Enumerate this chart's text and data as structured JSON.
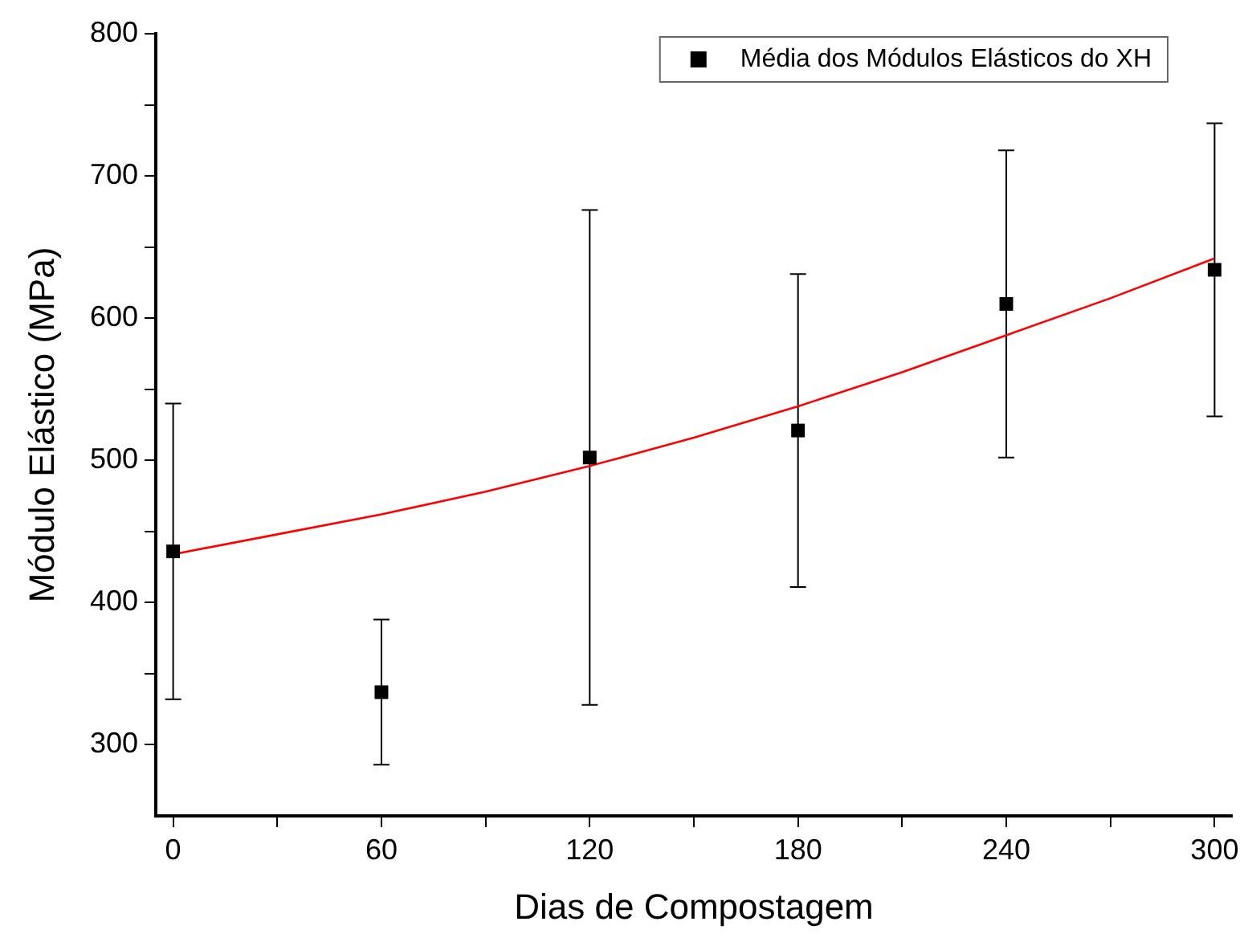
{
  "chart_data": {
    "type": "scatter",
    "xlabel": "Dias de Compostagem",
    "ylabel": "Módulo Elástico (MPa)",
    "xlim": [
      -5,
      305
    ],
    "xticks": [
      0,
      {
        "value": 30,
        "label": null
      },
      60,
      {
        "value": 90,
        "label": null
      },
      120,
      {
        "value": 150,
        "label": null
      },
      180,
      {
        "value": 210,
        "label": null
      },
      240,
      {
        "value": 270,
        "label": null
      },
      300
    ],
    "ylim": [
      250,
      800
    ],
    "yticks": [
      300,
      {
        "value": 350,
        "label": null
      },
      400,
      {
        "value": 450,
        "label": null
      },
      500,
      {
        "value": 550,
        "label": null
      },
      600,
      {
        "value": 650,
        "label": null
      },
      700,
      {
        "value": 750,
        "label": null
      },
      800
    ],
    "grid": false,
    "legend": "top right",
    "series": [
      {
        "name": "Média dos Módulos Elásticos do XH",
        "type": "scatter",
        "marker": "square",
        "color": "#000000",
        "x": [
          0,
          60,
          120,
          180,
          240,
          300
        ],
        "values": [
          436,
          337,
          502,
          521,
          610,
          634
        ],
        "errors": [
          104,
          51,
          174,
          110,
          108,
          103
        ]
      },
      {
        "type": "line",
        "marker": "none",
        "line_style": "solid",
        "color": "#ff0000",
        "x": [
          0,
          30,
          60,
          90,
          120,
          150,
          180,
          210,
          240,
          270,
          300
        ],
        "values": [
          434,
          448,
          462,
          478,
          496,
          516,
          538,
          562,
          588,
          614,
          642
        ]
      }
    ]
  }
}
